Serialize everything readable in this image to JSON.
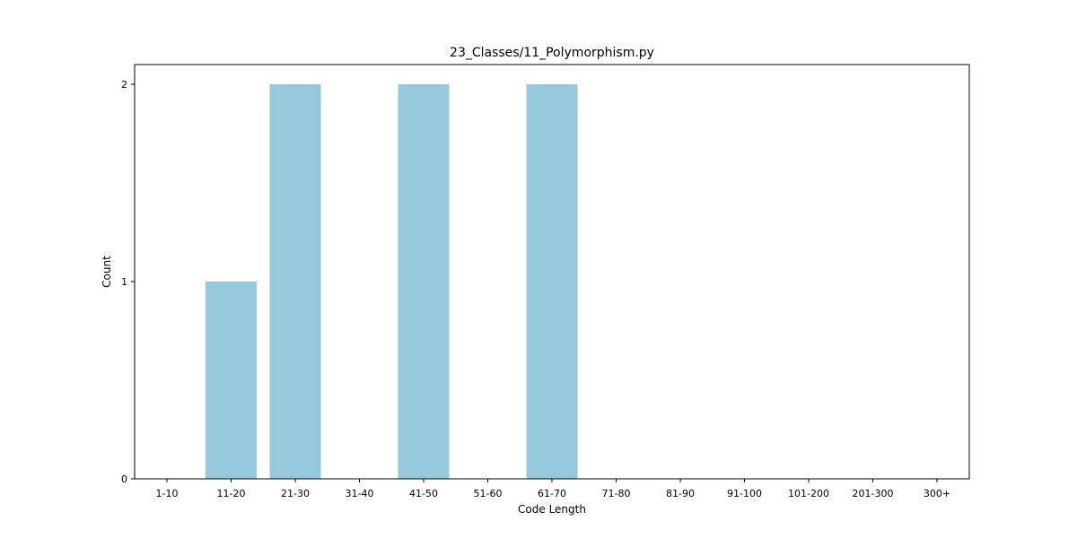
{
  "chart_data": {
    "type": "bar",
    "title": "23_Classes/11_Polymorphism.py",
    "xlabel": "Code Length",
    "ylabel": "Count",
    "categories": [
      "1-10",
      "11-20",
      "21-30",
      "31-40",
      "41-50",
      "51-60",
      "61-70",
      "71-80",
      "81-90",
      "91-100",
      "101-200",
      "201-300",
      "300+"
    ],
    "values": [
      0,
      1,
      2,
      0,
      2,
      0,
      2,
      0,
      0,
      0,
      0,
      0,
      0
    ],
    "yticks": [
      0,
      1,
      2
    ],
    "ylim": [
      0,
      2.1
    ],
    "bar_color": "#96c9dc",
    "grid": false,
    "legend": false
  }
}
